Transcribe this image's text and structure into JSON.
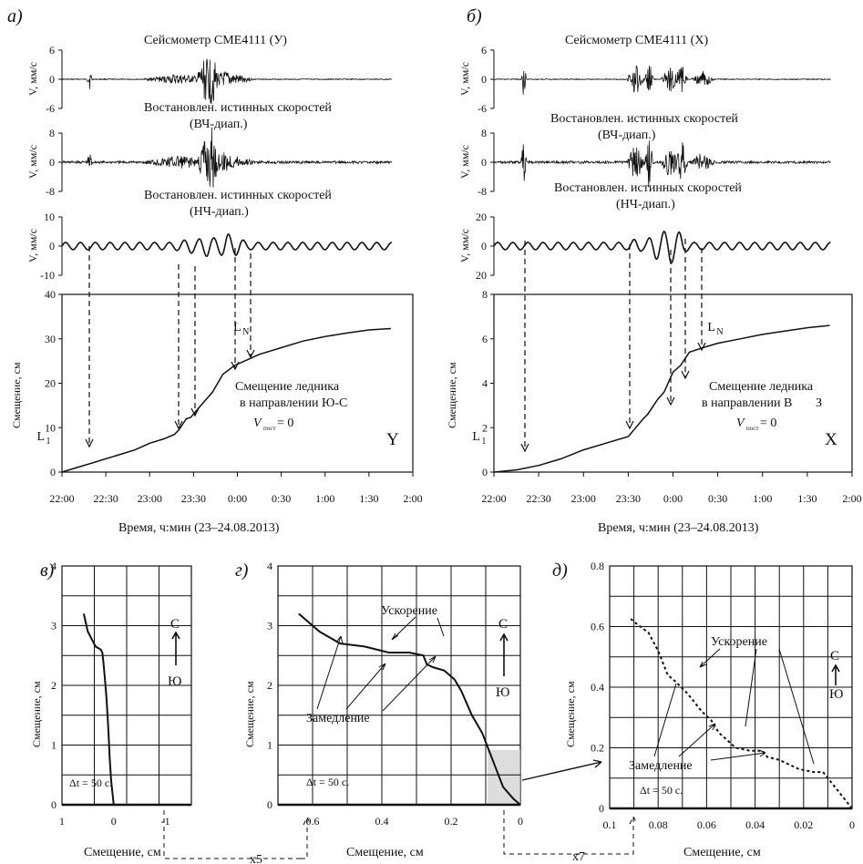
{
  "chart_data": [
    {
      "id": "a",
      "type": "line",
      "letter": "а)",
      "component": "Y",
      "xlabel": "Время, ч:мин (23–24.08.2013)",
      "x_ticks": [
        "22:00",
        "22:30",
        "23:00",
        "23:30",
        "0:00",
        "0:30",
        "1:00",
        "1:30",
        "2:00"
      ],
      "xlim_minutes": [
        0,
        240
      ],
      "traces": [
        {
          "title": "Сейсмометр   СМЕ4111   (У)",
          "ylabel": "V, мм/с",
          "yticks": [
            "6",
            "0",
            "-6"
          ],
          "ylim": [
            -6,
            6
          ]
        },
        {
          "title": "Востановлен. истинных скоростей (ВЧ-диап.)",
          "ylabel": "V, мм/с",
          "yticks": [
            "8",
            "0",
            "-8"
          ],
          "ylim": [
            -8,
            8
          ]
        },
        {
          "title": "Востановлен. истинных скоростей (НЧ-диап.)",
          "ylabel": "V, мм/с",
          "yticks": [
            "10",
            "0",
            "-10"
          ],
          "ylim": [
            -10,
            10
          ]
        }
      ],
      "displacement": {
        "ylabel": "Смещение, см",
        "ylim": [
          0,
          40
        ],
        "yticks": [
          "0",
          "10",
          "20",
          "30",
          "40"
        ],
        "x_minutes": [
          0,
          10,
          20,
          30,
          40,
          50,
          60,
          70,
          77,
          80,
          85,
          88,
          95,
          103,
          110,
          118,
          125,
          135,
          150,
          165,
          180,
          195,
          210,
          225
        ],
        "values": [
          0,
          1,
          2,
          3,
          4,
          5,
          6.5,
          7.5,
          8.5,
          9.5,
          12,
          12.3,
          15,
          18,
          22,
          24,
          25,
          26.5,
          28,
          29.5,
          30.5,
          31.3,
          32,
          32.3
        ],
        "annotation": [
          "Смещение ледника",
          "в направлении Ю-С",
          "V",
          "пост",
          " = 0"
        ],
        "markers": [
          {
            "label": "L",
            "sub": "1",
            "x_minutes": 19
          },
          {
            "label": "L",
            "sub": "N",
            "x_minutes": 111
          }
        ],
        "corner_label": "Y"
      }
    },
    {
      "id": "b",
      "type": "line",
      "letter": "б)",
      "component": "X",
      "xlabel": "Время, ч:мин (23–24.08.2013)",
      "x_ticks": [
        "22:00",
        "22:30",
        "23:00",
        "23:30",
        "0:00",
        "0:30",
        "1:00",
        "1:30",
        "2:00"
      ],
      "xlim_minutes": [
        0,
        240
      ],
      "traces": [
        {
          "title": "Сейсмометр   СМЕ4111        (Х)",
          "ylabel": "V, мм/с",
          "yticks": [
            "6",
            "0",
            "-6"
          ],
          "ylim": [
            -6,
            6
          ]
        },
        {
          "title": "Востановлен. истинных скоростей (ВЧ-диап.)",
          "ylabel": "V, мм/с",
          "yticks": [
            "8",
            "0",
            "-8"
          ],
          "ylim": [
            -8,
            8
          ]
        },
        {
          "title": "Востановлен. истинных скоростей (НЧ-диап.)",
          "ylabel": "V, мм/с",
          "yticks": [
            "20",
            "0",
            "20"
          ],
          "ylim": [
            -20,
            20
          ]
        }
      ],
      "displacement": {
        "ylabel": "Смещение, см",
        "ylim": [
          0,
          8
        ],
        "yticks": [
          "0",
          "2",
          "4",
          "6",
          "8"
        ],
        "x_minutes": [
          0,
          15,
          30,
          45,
          60,
          75,
          90,
          95,
          100,
          103,
          110,
          114,
          120,
          125,
          131,
          140,
          150,
          165,
          180,
          195,
          210,
          225
        ],
        "values": [
          0,
          0.1,
          0.3,
          0.6,
          1.0,
          1.3,
          1.6,
          2.0,
          2.4,
          2.6,
          3.3,
          3.6,
          4.5,
          4.8,
          5.4,
          5.6,
          5.8,
          6.0,
          6.2,
          6.35,
          6.5,
          6.6
        ],
        "annotation": [
          "Смещение ледника",
          "в направлении В",
          "З",
          "V",
          "пост",
          " = 0"
        ],
        "markers": [
          {
            "label": "L",
            "sub": "1",
            "x_minutes": 21
          },
          {
            "label": "L",
            "sub": "N",
            "x_minutes": 137
          }
        ],
        "corner_label": "X"
      }
    },
    {
      "id": "v",
      "type": "line",
      "letter": "в)",
      "xlabel": "Смещение, см",
      "ylabel": "Смещение, см",
      "xlim": [
        1,
        -1.5
      ],
      "ylim": [
        0,
        4
      ],
      "x_ticks": [
        "1",
        "0",
        "-1"
      ],
      "yticks": [
        "0",
        "1",
        "2",
        "3",
        "4"
      ],
      "x": [
        0,
        0.05,
        0.08,
        0.1,
        0.12,
        0.14,
        0.16,
        0.18,
        0.2,
        0.22,
        0.25,
        0.35,
        0.5,
        0.58
      ],
      "y": [
        0,
        0.4,
        0.8,
        1.2,
        1.5,
        1.8,
        2.0,
        2.2,
        2.4,
        2.55,
        2.6,
        2.65,
        2.9,
        3.2
      ],
      "compass": [
        "С",
        "Ю"
      ],
      "dt_label": "Δt = 50 с."
    },
    {
      "id": "g",
      "type": "line",
      "letter": "г)",
      "xlabel": "Смещение, см",
      "ylabel": "Смещение, см",
      "xlim": [
        0.7,
        0
      ],
      "ylim": [
        0,
        4
      ],
      "x_ticks": [
        "0.6",
        "0.4",
        "0.2",
        "0"
      ],
      "yticks": [
        "0",
        "1",
        "2",
        "3",
        "4"
      ],
      "x": [
        0,
        0.02,
        0.05,
        0.07,
        0.09,
        0.11,
        0.14,
        0.17,
        0.19,
        0.22,
        0.25,
        0.27,
        0.28,
        0.32,
        0.38,
        0.45,
        0.52,
        0.58,
        0.64
      ],
      "y": [
        0,
        0.1,
        0.3,
        0.6,
        0.9,
        1.2,
        1.5,
        1.9,
        2.1,
        2.25,
        2.3,
        2.35,
        2.5,
        2.55,
        2.55,
        2.65,
        2.7,
        2.9,
        3.2
      ],
      "annotations": [
        "Ускорение",
        "Замедление"
      ],
      "compass": [
        "С",
        "Ю"
      ],
      "dt_label": "Δt = 50 с.",
      "scale_label": "x5"
    },
    {
      "id": "d",
      "type": "line",
      "letter": "д)",
      "xlabel": "Смещение, см",
      "ylabel": "Смещение, см",
      "xlim": [
        0.1,
        0
      ],
      "ylim": [
        0,
        0.8
      ],
      "x_ticks": [
        "0.1",
        "0.08",
        "0.06",
        "0.04",
        "0.02",
        "0"
      ],
      "yticks": [
        "0",
        "0.2",
        "0.4",
        "0.6",
        "0.8"
      ],
      "x": [
        0,
        0.003,
        0.006,
        0.008,
        0.01,
        0.012,
        0.016,
        0.022,
        0.03,
        0.035,
        0.037,
        0.042,
        0.048,
        0.055,
        0.058,
        0.062,
        0.068,
        0.073,
        0.076,
        0.08,
        0.084,
        0.089,
        0.092
      ],
      "y": [
        0,
        0.03,
        0.06,
        0.08,
        0.1,
        0.12,
        0.12,
        0.13,
        0.16,
        0.17,
        0.19,
        0.19,
        0.2,
        0.25,
        0.29,
        0.32,
        0.38,
        0.42,
        0.44,
        0.52,
        0.58,
        0.61,
        0.63
      ],
      "annotations": [
        "Ускорение",
        "Замедление"
      ],
      "compass": [
        "С",
        "Ю"
      ],
      "dt_label": "Δt = 50 с.",
      "scale_label": "x7"
    }
  ]
}
